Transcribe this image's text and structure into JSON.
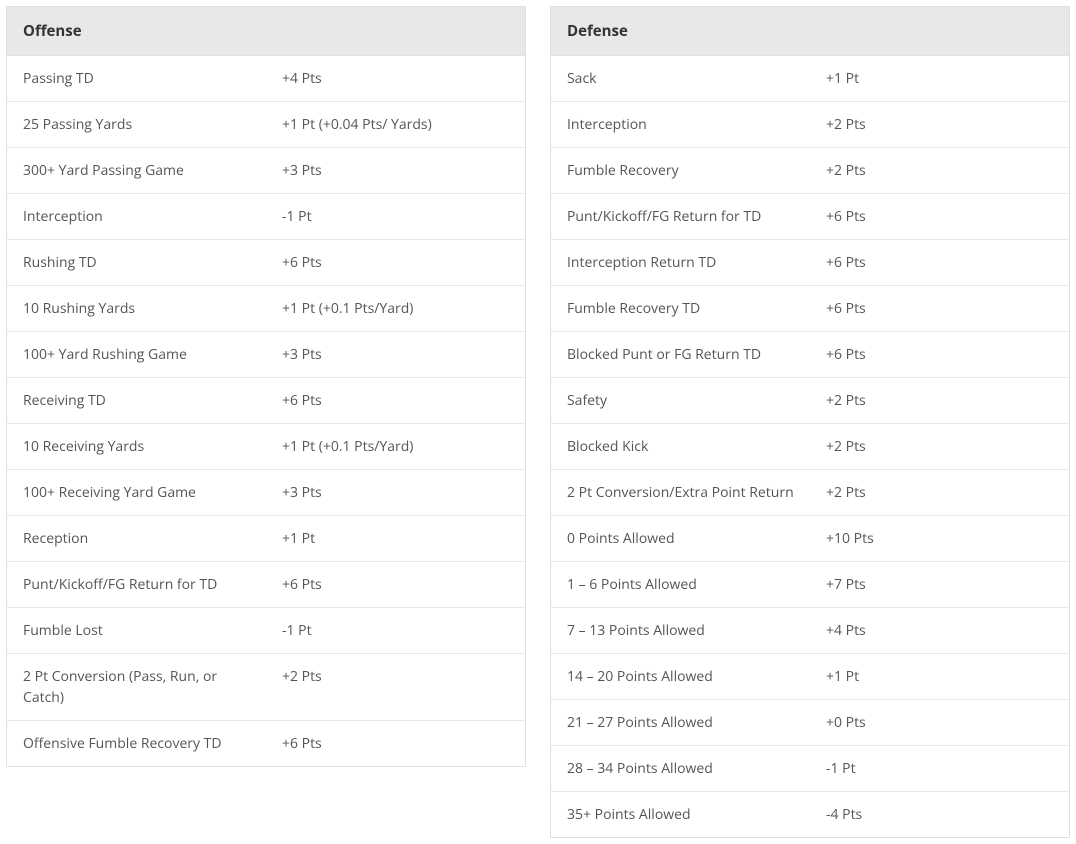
{
  "offense": {
    "header": "Offense",
    "rows": [
      {
        "name": "Passing TD",
        "value": "+4 Pts"
      },
      {
        "name": "25 Passing Yards",
        "value": "+1 Pt (+0.04 Pts/ Yards)"
      },
      {
        "name": "300+ Yard Passing Game",
        "value": "+3 Pts"
      },
      {
        "name": "Interception",
        "value": "-1 Pt"
      },
      {
        "name": "Rushing TD",
        "value": "+6 Pts"
      },
      {
        "name": "10 Rushing Yards",
        "value": "+1 Pt (+0.1 Pts/Yard)"
      },
      {
        "name": "100+ Yard Rushing Game",
        "value": "+3 Pts"
      },
      {
        "name": "Receiving TD",
        "value": "+6 Pts"
      },
      {
        "name": "10 Receiving Yards",
        "value": "+1 Pt (+0.1 Pts/Yard)"
      },
      {
        "name": "100+ Receiving Yard Game",
        "value": "+3 Pts"
      },
      {
        "name": "Reception",
        "value": "+1 Pt"
      },
      {
        "name": "Punt/Kickoff/FG Return for TD",
        "value": "+6 Pts"
      },
      {
        "name": "Fumble Lost",
        "value": "-1 Pt"
      },
      {
        "name": "2 Pt Conversion (Pass, Run, or Catch)",
        "value": "+2 Pts"
      },
      {
        "name": "Offensive Fumble Recovery TD",
        "value": "+6 Pts"
      }
    ]
  },
  "defense": {
    "header": "Defense",
    "rows": [
      {
        "name": "Sack",
        "value": "+1 Pt"
      },
      {
        "name": "Interception",
        "value": "+2 Pts"
      },
      {
        "name": "Fumble Recovery",
        "value": "+2 Pts"
      },
      {
        "name": "Punt/Kickoff/FG Return for TD",
        "value": "+6 Pts"
      },
      {
        "name": "Interception Return TD",
        "value": "+6 Pts"
      },
      {
        "name": "Fumble Recovery TD",
        "value": "+6 Pts"
      },
      {
        "name": "Blocked Punt or FG Return TD",
        "value": "+6 Pts"
      },
      {
        "name": "Safety",
        "value": "+2 Pts"
      },
      {
        "name": "Blocked Kick",
        "value": "+2 Pts"
      },
      {
        "name": "2 Pt Conversion/Extra Point Return",
        "value": "+2 Pts"
      },
      {
        "name": "0 Points Allowed",
        "value": "+10 Pts"
      },
      {
        "name": "1 – 6 Points Allowed",
        "value": "+7 Pts"
      },
      {
        "name": "7 – 13 Points Allowed",
        "value": "+4 Pts"
      },
      {
        "name": "14 – 20 Points Allowed",
        "value": "+1 Pt"
      },
      {
        "name": "21 – 27 Points Allowed",
        "value": "+0 Pts"
      },
      {
        "name": "28 – 34 Points Allowed",
        "value": "-1 Pt"
      },
      {
        "name": "35+ Points Allowed",
        "value": "-4 Pts"
      }
    ]
  }
}
